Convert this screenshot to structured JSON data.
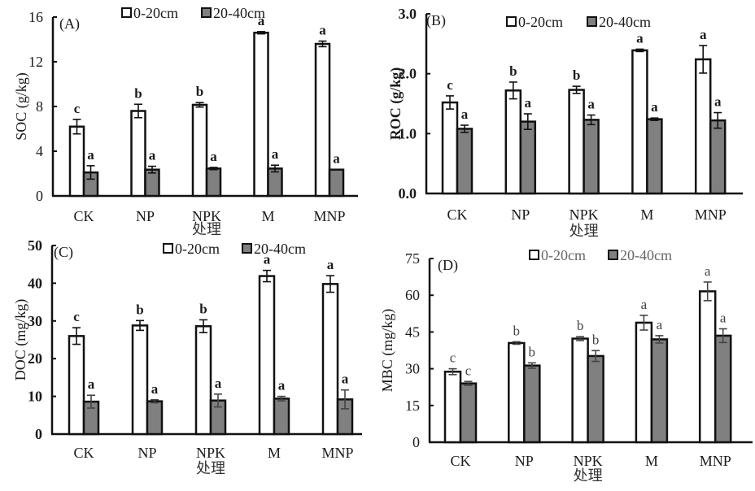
{
  "chart_data": [
    {
      "type": "bar",
      "panel": "(A)",
      "title": "",
      "ylabel": "SOC (g/kg)",
      "xlabel": "处理",
      "ylim": [
        0,
        16
      ],
      "yticks": [
        0,
        4,
        8,
        12,
        16
      ],
      "ytick_labels": [
        "0",
        "4",
        "8",
        "12",
        "16"
      ],
      "grid": false,
      "legend_position": "top",
      "categories": [
        "CK",
        "NP",
        "NPK",
        "M",
        "MNP"
      ],
      "series": [
        {
          "name": "0-20cm",
          "values": [
            6.2,
            7.6,
            8.15,
            14.6,
            13.6
          ],
          "errors": [
            0.65,
            0.6,
            0.2,
            0.1,
            0.25
          ],
          "letters": [
            "c",
            "b",
            "b",
            "a",
            "a"
          ]
        },
        {
          "name": "20-40cm",
          "values": [
            2.1,
            2.35,
            2.45,
            2.45,
            2.35
          ],
          "errors": [
            0.6,
            0.3,
            0.1,
            0.3,
            0.0
          ],
          "letters": [
            "a",
            "a",
            "a",
            "a",
            "a"
          ]
        }
      ]
    },
    {
      "type": "bar",
      "panel": "(B)",
      "title": "",
      "ylabel": "ROC (g/kg)",
      "xlabel": "处理",
      "ylim": [
        0,
        3.0
      ],
      "yticks": [
        0,
        1,
        2,
        3
      ],
      "ytick_labels": [
        "0.0",
        "1.0",
        "2.0",
        "3.0"
      ],
      "grid": false,
      "legend_position": "top",
      "categories": [
        "CK",
        "NP",
        "NPK",
        "M",
        "MNP"
      ],
      "series": [
        {
          "name": "0-20cm",
          "values": [
            1.52,
            1.72,
            1.73,
            2.39,
            2.24
          ],
          "errors": [
            0.11,
            0.14,
            0.06,
            0.02,
            0.23
          ],
          "letters": [
            "c",
            "b",
            "b",
            "a",
            "a"
          ]
        },
        {
          "name": "20-40cm",
          "values": [
            1.08,
            1.2,
            1.23,
            1.24,
            1.22
          ],
          "errors": [
            0.06,
            0.13,
            0.08,
            0.02,
            0.13
          ],
          "letters": [
            "a",
            "a",
            "a",
            "a",
            "a"
          ]
        }
      ]
    },
    {
      "type": "bar",
      "panel": "(C)",
      "title": "",
      "ylabel": "DOC (mg/kg)",
      "xlabel": "处理",
      "ylim": [
        0,
        50
      ],
      "yticks": [
        0,
        10,
        20,
        30,
        40,
        50
      ],
      "ytick_labels": [
        "0",
        "10",
        "20",
        "30",
        "40",
        "50"
      ],
      "grid": false,
      "legend_position": "top",
      "categories": [
        "CK",
        "NP",
        "NPK",
        "M",
        "MNP"
      ],
      "series": [
        {
          "name": "0-20cm",
          "values": [
            26.0,
            28.8,
            28.6,
            41.9,
            39.8
          ],
          "errors": [
            2.2,
            1.3,
            1.7,
            1.5,
            2.2
          ],
          "letters": [
            "c",
            "b",
            "b",
            "a",
            "a"
          ]
        },
        {
          "name": "20-40cm",
          "values": [
            8.6,
            8.7,
            8.9,
            9.4,
            9.2
          ],
          "errors": [
            1.7,
            0.4,
            1.7,
            0.6,
            2.5
          ],
          "letters": [
            "a",
            "a",
            "a",
            "a",
            "a"
          ]
        }
      ]
    },
    {
      "type": "bar",
      "panel": "(D)",
      "title": "",
      "ylabel": "MBC (mg/kg)",
      "xlabel": "处理",
      "ylim": [
        0,
        75
      ],
      "yticks": [
        0,
        15,
        30,
        45,
        60,
        75
      ],
      "ytick_labels": [
        "0",
        "15",
        "30",
        "45",
        "60",
        "75"
      ],
      "grid": false,
      "legend_position": "top",
      "categories": [
        "CK",
        "NP",
        "NPK",
        "M",
        "MNP"
      ],
      "series": [
        {
          "name": "0-20cm",
          "values": [
            28.8,
            40.5,
            42.3,
            48.8,
            61.6
          ],
          "errors": [
            1.2,
            0.5,
            0.8,
            3.0,
            3.8
          ],
          "letters": [
            "c",
            "b",
            "b",
            "a",
            "a"
          ]
        },
        {
          "name": "20-40cm",
          "values": [
            24.0,
            31.3,
            35.2,
            42.0,
            43.5
          ],
          "errors": [
            0.8,
            1.1,
            2.2,
            1.5,
            2.8
          ],
          "letters": [
            "c",
            "b",
            "b",
            "a",
            "a"
          ]
        }
      ]
    }
  ],
  "colors": {
    "series_0_fill": "#ffffff",
    "series_1_fill": "#808080",
    "stroke": "#111111"
  }
}
